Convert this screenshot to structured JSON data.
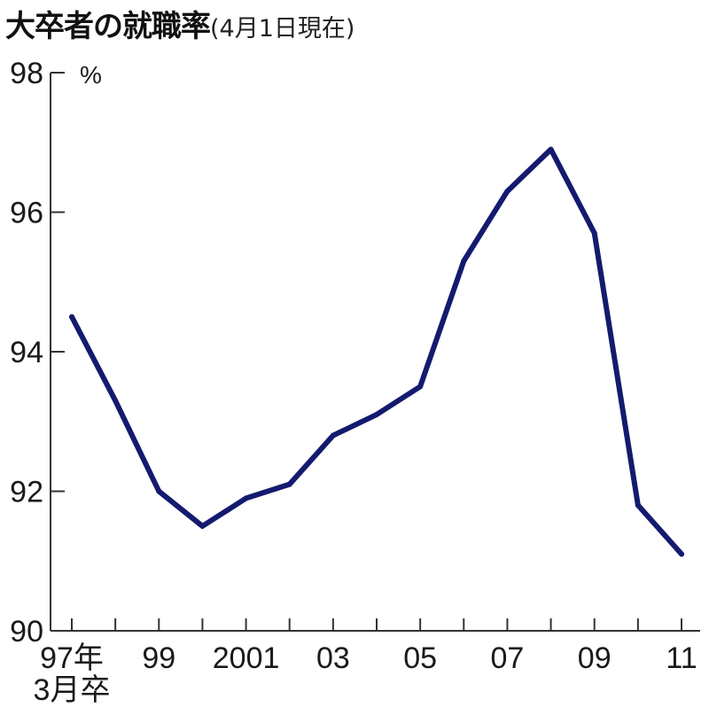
{
  "chart_data": {
    "type": "line",
    "title": "大卒者の就職率",
    "subtitle": "(4月1日現在)",
    "ylabel": "%",
    "xlabel": "",
    "ylim": [
      90,
      98
    ],
    "yticks": [
      90,
      92,
      94,
      96,
      98
    ],
    "x": [
      1997,
      1998,
      1999,
      2000,
      2001,
      2002,
      2003,
      2004,
      2005,
      2006,
      2007,
      2008,
      2009,
      2010,
      2011
    ],
    "x_tick_labels": [
      {
        "x": 1997,
        "label": "97年",
        "sublabel": "3月卒"
      },
      {
        "x": 1999,
        "label": "99"
      },
      {
        "x": 2001,
        "label": "2001"
      },
      {
        "x": 2003,
        "label": "03"
      },
      {
        "x": 2005,
        "label": "05"
      },
      {
        "x": 2007,
        "label": "07"
      },
      {
        "x": 2009,
        "label": "09"
      },
      {
        "x": 2011,
        "label": "11"
      }
    ],
    "series": [
      {
        "values": [
          94.5,
          93.3,
          92.0,
          91.5,
          91.9,
          92.1,
          92.8,
          93.1,
          93.5,
          95.3,
          96.3,
          96.9,
          95.7,
          91.8,
          91.1
        ],
        "color": "#141a6e"
      }
    ],
    "grid": false,
    "legend": "none"
  }
}
